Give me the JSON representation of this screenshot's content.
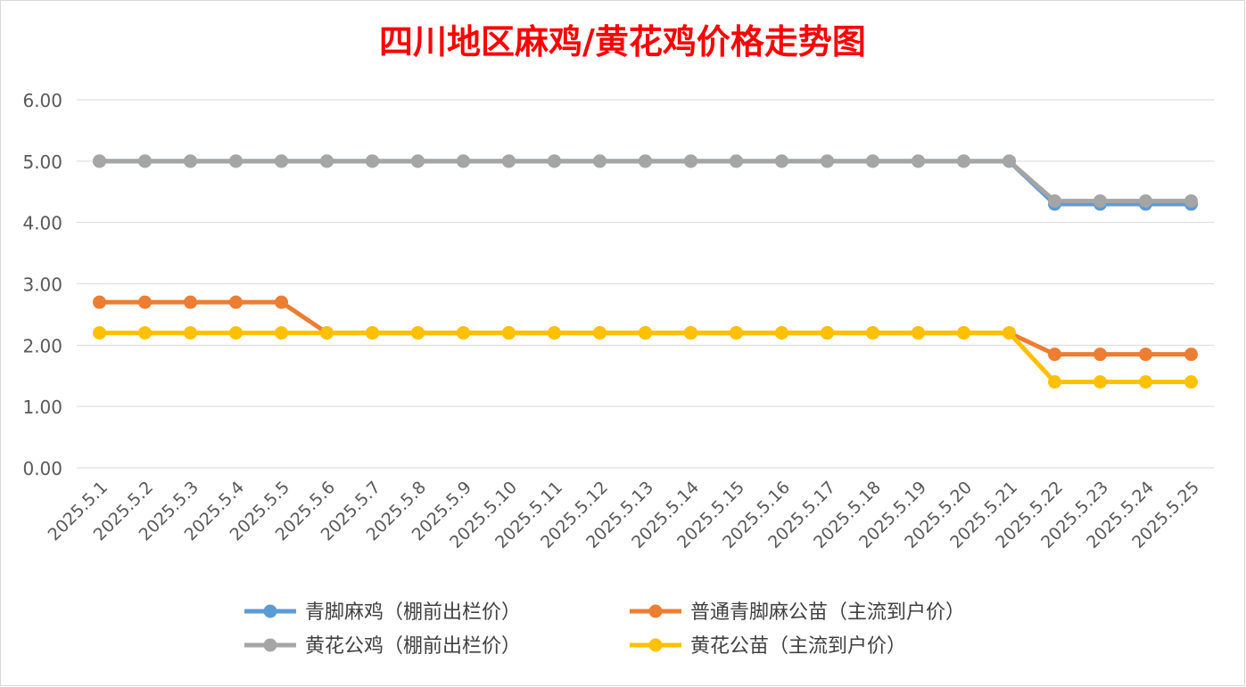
{
  "chart_data": {
    "type": "line",
    "title": "四川地区麻鸡/黄花鸡价格走势图",
    "title_color": "#ff0000",
    "categories": [
      "2025.5.1",
      "2025.5.2",
      "2025.5.3",
      "2025.5.4",
      "2025.5.5",
      "2025.5.6",
      "2025.5.7",
      "2025.5.8",
      "2025.5.9",
      "2025.5.10",
      "2025.5.11",
      "2025.5.12",
      "2025.5.13",
      "2025.5.14",
      "2025.5.15",
      "2025.5.16",
      "2025.5.17",
      "2025.5.18",
      "2025.5.19",
      "2025.5.20",
      "2025.5.21",
      "2025.5.22",
      "2025.5.23",
      "2025.5.24",
      "2025.5.25"
    ],
    "yticks": [
      "0.00",
      "1.00",
      "2.00",
      "3.00",
      "4.00",
      "5.00",
      "6.00"
    ],
    "ylim": [
      0,
      6
    ],
    "grid": true,
    "legend_position": "bottom",
    "series": [
      {
        "name": "青脚麻鸡（棚前出栏价）",
        "color": "#5b9bd5",
        "values": [
          5,
          5,
          5,
          5,
          5,
          5,
          5,
          5,
          5,
          5,
          5,
          5,
          5,
          5,
          5,
          5,
          5,
          5,
          5,
          5,
          5,
          4.3,
          4.3,
          4.3,
          4.3
        ]
      },
      {
        "name": "普通青脚麻公苗（主流到户价）",
        "color": "#ed7d31",
        "values": [
          2.7,
          2.7,
          2.7,
          2.7,
          2.7,
          2.2,
          2.2,
          2.2,
          2.2,
          2.2,
          2.2,
          2.2,
          2.2,
          2.2,
          2.2,
          2.2,
          2.2,
          2.2,
          2.2,
          2.2,
          2.2,
          1.85,
          1.85,
          1.85,
          1.85
        ]
      },
      {
        "name": "黄花公鸡（棚前出栏价）",
        "color": "#a5a5a5",
        "values": [
          5,
          5,
          5,
          5,
          5,
          5,
          5,
          5,
          5,
          5,
          5,
          5,
          5,
          5,
          5,
          5,
          5,
          5,
          5,
          5,
          5,
          4.35,
          4.35,
          4.35,
          4.35
        ]
      },
      {
        "name": "黄花公苗（主流到户价）",
        "color": "#ffc000",
        "values": [
          2.2,
          2.2,
          2.2,
          2.2,
          2.2,
          2.2,
          2.2,
          2.2,
          2.2,
          2.2,
          2.2,
          2.2,
          2.2,
          2.2,
          2.2,
          2.2,
          2.2,
          2.2,
          2.2,
          2.2,
          2.2,
          1.4,
          1.4,
          1.4,
          1.4
        ]
      }
    ]
  }
}
